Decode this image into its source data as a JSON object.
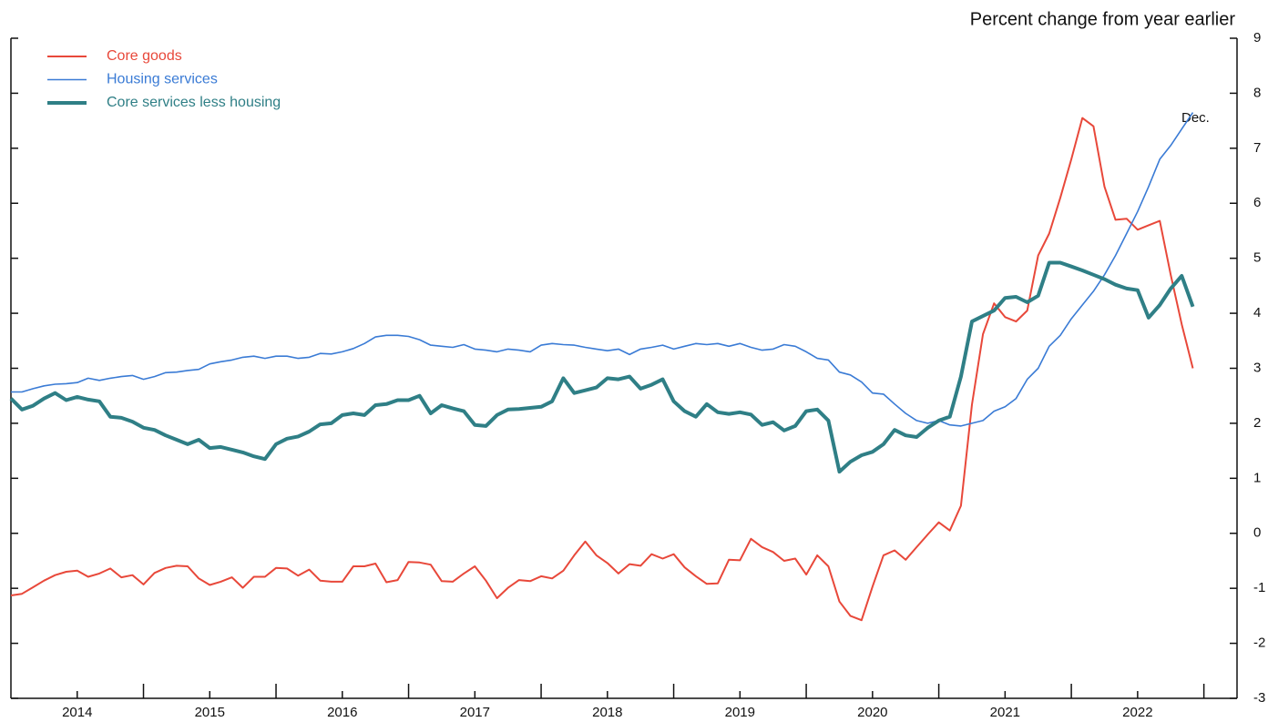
{
  "chart_data": {
    "type": "line",
    "title": "Percent change from year earlier",
    "annotations": [
      "Dec."
    ],
    "legend": "top-left",
    "x": [
      2014,
      2014.083,
      2014.167,
      2014.25,
      2014.333,
      2014.417,
      2014.5,
      2014.583,
      2014.667,
      2014.75,
      2014.833,
      2014.917,
      2015,
      2015.083,
      2015.167,
      2015.25,
      2015.333,
      2015.417,
      2015.5,
      2015.583,
      2015.667,
      2015.75,
      2015.833,
      2015.917,
      2016,
      2016.083,
      2016.167,
      2016.25,
      2016.333,
      2016.417,
      2016.5,
      2016.583,
      2016.667,
      2016.75,
      2016.833,
      2016.917,
      2017,
      2017.083,
      2017.167,
      2017.25,
      2017.333,
      2017.417,
      2017.5,
      2017.583,
      2017.667,
      2017.75,
      2017.833,
      2017.917,
      2018,
      2018.083,
      2018.167,
      2018.25,
      2018.333,
      2018.417,
      2018.5,
      2018.583,
      2018.667,
      2018.75,
      2018.833,
      2018.917,
      2019,
      2019.083,
      2019.167,
      2019.25,
      2019.333,
      2019.417,
      2019.5,
      2019.583,
      2019.667,
      2019.75,
      2019.833,
      2019.917,
      2020,
      2020.083,
      2020.167,
      2020.25,
      2020.333,
      2020.417,
      2020.5,
      2020.583,
      2020.667,
      2020.75,
      2020.833,
      2020.917,
      2021,
      2021.083,
      2021.167,
      2021.25,
      2021.333,
      2021.417,
      2021.5,
      2021.583,
      2021.667,
      2021.75,
      2021.833,
      2021.917,
      2022,
      2022.083,
      2022.167,
      2022.25,
      2022.333,
      2022.417,
      2022.5,
      2022.583,
      2022.667,
      2022.75,
      2022.833,
      2022.917
    ],
    "series": [
      {
        "name": "Core goods",
        "color": "#e8483a",
        "width": 2,
        "values": [
          -1.13,
          -1.1,
          -0.98,
          -0.86,
          -0.76,
          -0.7,
          -0.68,
          -0.79,
          -0.73,
          -0.64,
          -0.8,
          -0.76,
          -0.93,
          -0.72,
          -0.63,
          -0.59,
          -0.6,
          -0.82,
          -0.94,
          -0.88,
          -0.8,
          -0.99,
          -0.79,
          -0.79,
          -0.63,
          -0.64,
          -0.77,
          -0.66,
          -0.86,
          -0.88,
          -0.88,
          -0.6,
          -0.6,
          -0.55,
          -0.89,
          -0.85,
          -0.52,
          -0.53,
          -0.57,
          -0.87,
          -0.88,
          -0.73,
          -0.6,
          -0.86,
          -1.18,
          -0.99,
          -0.85,
          -0.87,
          -0.78,
          -0.82,
          -0.68,
          -0.4,
          -0.15,
          -0.4,
          -0.54,
          -0.73,
          -0.56,
          -0.59,
          -0.38,
          -0.46,
          -0.38,
          -0.62,
          -0.78,
          -0.92,
          -0.91,
          -0.48,
          -0.49,
          -0.1,
          -0.25,
          -0.34,
          -0.5,
          -0.46,
          -0.75,
          -0.4,
          -0.6,
          -1.24,
          -1.5,
          -1.58,
          -0.97,
          -0.4,
          -0.31,
          -0.48,
          -0.25,
          -0.02,
          0.2,
          0.05,
          0.5,
          2.34,
          3.62,
          4.18,
          3.93,
          3.85,
          4.05,
          5.05,
          5.45,
          6.1,
          6.8,
          7.55,
          7.4,
          6.3,
          5.7,
          5.72,
          5.52,
          5.6,
          5.68,
          4.7,
          3.8,
          3.0
        ]
      },
      {
        "name": "Housing services",
        "color": "#3a7bd5",
        "width": 1.6,
        "values": [
          2.57,
          2.57,
          2.63,
          2.68,
          2.71,
          2.72,
          2.74,
          2.82,
          2.78,
          2.82,
          2.85,
          2.87,
          2.8,
          2.85,
          2.92,
          2.93,
          2.96,
          2.98,
          3.08,
          3.12,
          3.15,
          3.2,
          3.22,
          3.18,
          3.22,
          3.22,
          3.18,
          3.2,
          3.27,
          3.26,
          3.3,
          3.36,
          3.45,
          3.57,
          3.6,
          3.6,
          3.58,
          3.52,
          3.42,
          3.4,
          3.38,
          3.43,
          3.35,
          3.33,
          3.3,
          3.35,
          3.33,
          3.3,
          3.42,
          3.45,
          3.43,
          3.42,
          3.38,
          3.35,
          3.32,
          3.35,
          3.25,
          3.35,
          3.38,
          3.42,
          3.35,
          3.4,
          3.45,
          3.43,
          3.45,
          3.4,
          3.45,
          3.38,
          3.33,
          3.35,
          3.43,
          3.4,
          3.3,
          3.18,
          3.15,
          2.93,
          2.88,
          2.75,
          2.55,
          2.53,
          2.35,
          2.18,
          2.05,
          2.0,
          2.05,
          1.97,
          1.95,
          2.0,
          2.05,
          2.22,
          2.3,
          2.45,
          2.8,
          3.0,
          3.4,
          3.6,
          3.9,
          4.15,
          4.4,
          4.7,
          5.05,
          5.45,
          5.85,
          6.3,
          6.8,
          7.05,
          7.35,
          7.65
        ]
      },
      {
        "name": "Core services less housing",
        "color": "#2f7f86",
        "width": 4,
        "values": [
          2.45,
          2.25,
          2.32,
          2.45,
          2.55,
          2.42,
          2.48,
          2.43,
          2.4,
          2.12,
          2.1,
          2.03,
          1.92,
          1.88,
          1.78,
          1.7,
          1.62,
          1.7,
          1.55,
          1.57,
          1.52,
          1.47,
          1.4,
          1.35,
          1.62,
          1.72,
          1.76,
          1.85,
          1.98,
          2.0,
          2.15,
          2.18,
          2.15,
          2.33,
          2.35,
          2.42,
          2.42,
          2.5,
          2.18,
          2.33,
          2.27,
          2.22,
          1.97,
          1.95,
          2.15,
          2.25,
          2.26,
          2.28,
          2.3,
          2.4,
          2.82,
          2.55,
          2.6,
          2.65,
          2.82,
          2.8,
          2.85,
          2.63,
          2.7,
          2.8,
          2.4,
          2.22,
          2.12,
          2.35,
          2.2,
          2.17,
          2.2,
          2.16,
          1.97,
          2.02,
          1.87,
          1.95,
          2.22,
          2.25,
          2.05,
          1.12,
          1.3,
          1.42,
          1.48,
          1.62,
          1.88,
          1.78,
          1.75,
          1.92,
          2.05,
          2.12,
          2.85,
          3.85,
          3.95,
          4.05,
          4.28,
          4.3,
          4.2,
          4.32,
          4.92,
          4.92,
          4.85,
          4.78,
          4.7,
          4.62,
          4.52,
          4.45,
          4.42,
          3.92,
          4.15,
          4.45,
          4.68,
          4.12
        ]
      }
    ],
    "xlim": [
      2014,
      2023.25
    ],
    "xticks": [
      {
        "value": 2014.5,
        "label": "2014"
      },
      {
        "value": 2015.5,
        "label": "2015"
      },
      {
        "value": 2016.5,
        "label": "2016"
      },
      {
        "value": 2017.5,
        "label": "2017"
      },
      {
        "value": 2018.5,
        "label": "2018"
      },
      {
        "value": 2019.5,
        "label": "2019"
      },
      {
        "value": 2020.5,
        "label": "2020"
      },
      {
        "value": 2021.5,
        "label": "2021"
      },
      {
        "value": 2022.5,
        "label": "2022"
      }
    ],
    "ylim": [
      -3,
      9
    ],
    "yticks": [
      -3,
      -2,
      -1,
      0,
      1,
      2,
      3,
      4,
      5,
      6,
      7,
      8,
      9
    ]
  }
}
